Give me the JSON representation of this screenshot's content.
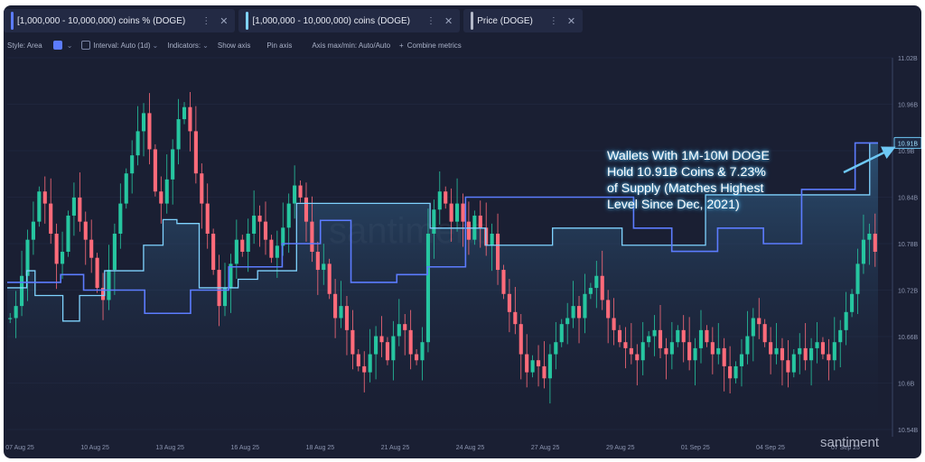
{
  "tabs": [
    {
      "label": "[1,000,000 - 10,000,000) coins % (DOGE)",
      "color": "#5c7cff"
    },
    {
      "label": "[1,000,000 - 10,000,000) coins (DOGE)",
      "color": "#7fd3ff"
    },
    {
      "label": "Price (DOGE)",
      "color": "#b3b9c9"
    }
  ],
  "toolbar": {
    "style": "Style: Area",
    "interval": "Interval: Auto (1d)",
    "indicators": "Indicators:",
    "show_axis": "Show axis",
    "pin_axis": "Pin axis",
    "axis_max": "Axis max/min: Auto/Auto",
    "combine": "Combine metrics"
  },
  "annotation": [
    "Wallets With 1M-10M DOGE",
    "Hold 10.91B Coins & 7.23%",
    "of Supply (Matches Highest",
    "Level Since Dec, 2021)"
  ],
  "watermark": "santiment",
  "watermark_bottom": "santiment",
  "chart_data": {
    "type": "line",
    "x_tick_labels": [
      "07 Aug 25",
      "10 Aug 25",
      "13 Aug 25",
      "16 Aug 25",
      "18 Aug 25",
      "21 Aug 25",
      "24 Aug 25",
      "27 Aug 25",
      "29 Aug 25",
      "01 Sep 25",
      "04 Sep 25",
      "07 Sep 25"
    ],
    "y_tick_labels": [
      "11.02B",
      "10.96B",
      "10.9B",
      "10.84B",
      "10.78B",
      "10.72B",
      "10.66B",
      "10.6B",
      "10.54B"
    ],
    "y_tick_values": [
      11.02,
      10.96,
      10.9,
      10.84,
      10.78,
      10.72,
      10.66,
      10.6,
      10.54
    ],
    "ylim": [
      10.54,
      11.02
    ],
    "current_value_label": "10.91B",
    "current_value": 10.91,
    "series": [
      {
        "name": "[1,000,000 - 10,000,000) coins (DOGE)",
        "color": "#7fd3ff",
        "style": "step-area",
        "values": [
          10.723,
          10.723,
          10.723,
          10.723,
          10.723,
          10.723,
          10.723,
          10.745,
          10.745,
          10.745,
          10.713,
          10.713,
          10.713,
          10.713,
          10.713,
          10.713,
          10.713,
          10.713,
          10.713,
          10.713,
          10.68,
          10.68,
          10.68,
          10.68,
          10.68,
          10.68,
          10.713,
          10.713,
          10.713,
          10.713,
          10.713,
          10.713,
          10.713,
          10.713,
          10.713,
          10.745,
          10.745,
          10.745,
          10.745,
          10.745,
          10.745,
          10.745,
          10.745,
          10.745,
          10.745,
          10.745,
          10.745,
          10.745,
          10.745,
          10.778,
          10.778,
          10.778,
          10.778,
          10.778,
          10.778,
          10.778,
          10.811,
          10.811,
          10.811,
          10.811,
          10.811,
          10.806,
          10.806,
          10.806,
          10.806,
          10.806,
          10.806,
          10.806,
          10.806,
          10.723,
          10.723,
          10.723,
          10.723,
          10.723,
          10.723,
          10.723,
          10.723,
          10.723,
          10.723,
          10.723,
          10.723,
          10.723,
          10.723,
          10.734,
          10.734,
          10.734,
          10.734,
          10.734,
          10.734,
          10.734,
          10.745,
          10.745,
          10.745,
          10.745,
          10.745,
          10.745,
          10.745,
          10.745,
          10.745,
          10.745,
          10.745,
          10.745,
          10.745,
          10.745,
          10.832,
          10.832,
          10.832,
          10.832,
          10.832,
          10.832,
          10.832,
          10.832,
          10.832,
          10.832,
          10.832,
          10.832,
          10.832,
          10.832,
          10.832,
          10.832,
          10.832,
          10.832,
          10.832,
          10.832,
          10.832,
          10.832,
          10.832,
          10.832,
          10.832,
          10.832,
          10.832,
          10.832,
          10.832,
          10.832,
          10.832,
          10.832,
          10.832,
          10.832,
          10.832,
          10.832,
          10.832,
          10.832,
          10.832,
          10.832,
          10.832,
          10.832,
          10.832,
          10.832,
          10.832,
          10.832,
          10.832,
          10.832,
          10.8,
          10.8,
          10.8,
          10.8,
          10.8,
          10.8,
          10.8,
          10.8,
          10.8,
          10.8,
          10.8,
          10.8,
          10.8,
          10.8,
          10.8,
          10.8,
          10.8,
          10.8,
          10.8,
          10.8,
          10.778,
          10.778,
          10.778,
          10.778,
          10.778,
          10.778,
          10.778,
          10.778,
          10.778,
          10.778,
          10.778,
          10.778,
          10.778,
          10.778,
          10.778,
          10.778,
          10.778,
          10.778,
          10.778,
          10.778,
          10.778,
          10.778,
          10.778,
          10.778,
          10.8,
          10.8,
          10.8,
          10.8,
          10.8,
          10.8,
          10.8,
          10.8,
          10.8,
          10.8,
          10.8,
          10.8,
          10.8,
          10.8,
          10.8,
          10.8,
          10.8,
          10.8,
          10.8,
          10.8,
          10.8,
          10.8,
          10.8,
          10.8,
          10.8,
          10.778,
          10.778,
          10.778,
          10.778,
          10.778,
          10.778,
          10.778,
          10.778,
          10.778,
          10.778,
          10.778,
          10.778,
          10.778,
          10.778,
          10.778,
          10.778,
          10.778,
          10.778,
          10.778,
          10.778,
          10.778,
          10.778,
          10.778,
          10.778,
          10.778,
          10.778,
          10.778,
          10.778,
          10.778,
          10.778,
          10.843,
          10.843,
          10.843,
          10.843,
          10.843,
          10.843,
          10.843,
          10.843,
          10.843,
          10.843,
          10.843,
          10.843,
          10.843,
          10.843,
          10.843,
          10.843,
          10.843,
          10.843,
          10.843,
          10.843,
          10.843,
          10.843,
          10.843,
          10.843,
          10.843,
          10.843,
          10.843,
          10.843,
          10.843,
          10.843,
          10.843,
          10.843,
          10.843,
          10.843,
          10.843,
          10.843,
          10.843,
          10.843,
          10.843,
          10.843,
          10.843,
          10.843,
          10.843,
          10.843,
          10.843,
          10.843,
          10.843,
          10.843,
          10.843,
          10.843,
          10.843,
          10.843,
          10.843,
          10.843,
          10.843,
          10.843,
          10.843,
          10.843,
          10.843,
          10.91,
          10.91,
          10.91,
          10.91
        ]
      },
      {
        "name": "[1,000,000 - 10,000,000) coins % (DOGE)",
        "color": "#5c7cff",
        "style": "step-line",
        "values": [
          10.73,
          10.73,
          10.73,
          10.73,
          10.73,
          10.73,
          10.73,
          10.74,
          10.74,
          10.74,
          10.72,
          10.72,
          10.72,
          10.72,
          10.72,
          10.72,
          10.72,
          10.72,
          10.69,
          10.69,
          10.69,
          10.69,
          10.69,
          10.69,
          10.72,
          10.72,
          10.72,
          10.72,
          10.72,
          10.75,
          10.75,
          10.75,
          10.75,
          10.75,
          10.75,
          10.75,
          10.78,
          10.78,
          10.78,
          10.78,
          10.78,
          10.81,
          10.81,
          10.81,
          10.81,
          10.73,
          10.73,
          10.73,
          10.73,
          10.73,
          10.73,
          10.74,
          10.74,
          10.74,
          10.74,
          10.75,
          10.75,
          10.75,
          10.75,
          10.75,
          10.84,
          10.84,
          10.84,
          10.84,
          10.84,
          10.84,
          10.84,
          10.84,
          10.84,
          10.84,
          10.84,
          10.84,
          10.84,
          10.84,
          10.84,
          10.84,
          10.84,
          10.84,
          10.84,
          10.84,
          10.84,
          10.84,
          10.8,
          10.8,
          10.8,
          10.8,
          10.8,
          10.77,
          10.77,
          10.77,
          10.77,
          10.77,
          10.77,
          10.8,
          10.8,
          10.8,
          10.8,
          10.8,
          10.8,
          10.78,
          10.78,
          10.78,
          10.78,
          10.78,
          10.85,
          10.85,
          10.85,
          10.85,
          10.85,
          10.85,
          10.85,
          10.91,
          10.91,
          10.91,
          10.91
        ]
      }
    ],
    "price_series": {
      "name": "Price (DOGE)",
      "style": "candlestick",
      "up_color": "#26c6a0",
      "down_color": "#ff6b7a",
      "closes": [
        0.205,
        0.207,
        0.212,
        0.218,
        0.221,
        0.226,
        0.224,
        0.219,
        0.214,
        0.216,
        0.222,
        0.225,
        0.221,
        0.218,
        0.215,
        0.21,
        0.208,
        0.213,
        0.219,
        0.224,
        0.229,
        0.232,
        0.236,
        0.239,
        0.233,
        0.226,
        0.224,
        0.228,
        0.233,
        0.238,
        0.24,
        0.236,
        0.229,
        0.224,
        0.219,
        0.213,
        0.207,
        0.21,
        0.214,
        0.218,
        0.216,
        0.219,
        0.222,
        0.221,
        0.218,
        0.215,
        0.217,
        0.22,
        0.224,
        0.227,
        0.225,
        0.221,
        0.216,
        0.213,
        0.214,
        0.209,
        0.205,
        0.207,
        0.203,
        0.199,
        0.197,
        0.196,
        0.199,
        0.202,
        0.201,
        0.198,
        0.202,
        0.204,
        0.203,
        0.199,
        0.198,
        0.201,
        0.219,
        0.223,
        0.226,
        0.224,
        0.221,
        0.224,
        0.221,
        0.218,
        0.222,
        0.22,
        0.217,
        0.219,
        0.213,
        0.209,
        0.206,
        0.204,
        0.199,
        0.196,
        0.198,
        0.197,
        0.195,
        0.199,
        0.201,
        0.204,
        0.205,
        0.207,
        0.205,
        0.209,
        0.21,
        0.212,
        0.208,
        0.205,
        0.203,
        0.201,
        0.2,
        0.199,
        0.198,
        0.201,
        0.202,
        0.203,
        0.2,
        0.199,
        0.201,
        0.203,
        0.201,
        0.198,
        0.2,
        0.203,
        0.201,
        0.199,
        0.2,
        0.197,
        0.195,
        0.197,
        0.199,
        0.202,
        0.205,
        0.204,
        0.201,
        0.199,
        0.2,
        0.198,
        0.196,
        0.199,
        0.2,
        0.198,
        0.2,
        0.201,
        0.199,
        0.198,
        0.201,
        0.203,
        0.206,
        0.209,
        0.214,
        0.218,
        0.219,
        0.216
      ]
    }
  }
}
